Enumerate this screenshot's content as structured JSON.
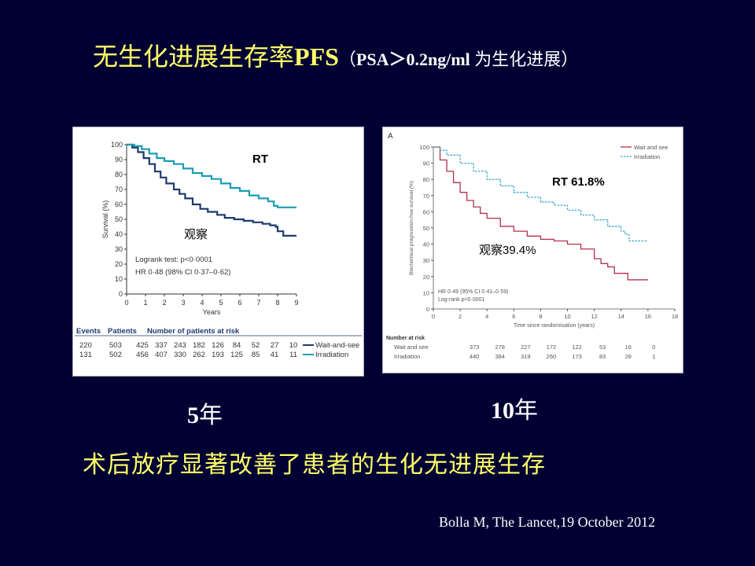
{
  "slide": {
    "title_main": "无生化进展生存率",
    "title_pfs": "PFS",
    "title_paren_open": "（",
    "title_paren_psa": "PSA＞0.2ng/ml ",
    "title_paren_cjk": "为生化进展",
    "title_paren_close": "）",
    "label_5yr_num": "5",
    "label_5yr_unit": "年",
    "label_10yr_num": "10",
    "label_10yr_unit": "年",
    "conclusion": "术后放疗显著改善了患者的生化无进展生存",
    "citation": "Bolla M, The Lancet,19 October 2012"
  },
  "colors": {
    "background": "#000033",
    "title": "#ffff66",
    "left_wait": "#1f3a6e",
    "left_irr": "#1b9db4",
    "right_wait": "#b3304c",
    "right_irr": "#36a9c9"
  },
  "chart_data": [
    {
      "type": "line",
      "ylabel": "Survival (%)",
      "xlabel": "Years",
      "xlim": [
        0,
        9
      ],
      "ylim": [
        0,
        100
      ],
      "xticks": [
        0,
        1,
        2,
        3,
        4,
        5,
        6,
        7,
        8,
        9
      ],
      "yticks": [
        0,
        10,
        20,
        30,
        40,
        50,
        60,
        70,
        80,
        90,
        100
      ],
      "annotations": {
        "rt": "RT",
        "obs": "观察",
        "logrank": "Logrank test: p<0·0001",
        "hr": "HR 0·48 (98% CI 0·37–0·62)"
      },
      "series": [
        {
          "name": "Wait-and-see",
          "x": [
            0,
            0.3,
            0.6,
            0.9,
            1.2,
            1.5,
            1.8,
            2.1,
            2.5,
            2.8,
            3.1,
            3.5,
            3.9,
            4.3,
            4.8,
            5.2,
            5.7,
            6.2,
            6.7,
            7.2,
            7.6,
            7.9,
            8.0,
            8.3,
            8.6,
            9.0
          ],
          "y": [
            100,
            98,
            95,
            91,
            87,
            82,
            78,
            74,
            70,
            67,
            64,
            60,
            57,
            55,
            53,
            51,
            50,
            49,
            48,
            47,
            46,
            45,
            42,
            39,
            39,
            39
          ]
        },
        {
          "name": "Irradiation",
          "x": [
            0,
            0.4,
            0.8,
            1.2,
            1.6,
            2.0,
            2.5,
            3.0,
            3.5,
            4.0,
            4.5,
            5.0,
            5.5,
            6.0,
            6.5,
            7.0,
            7.5,
            7.8,
            8.0,
            8.5,
            9.0
          ],
          "y": [
            100,
            99,
            97,
            94,
            91,
            89,
            87,
            84,
            81,
            79,
            77,
            74,
            71,
            69,
            66,
            64,
            62,
            59,
            58,
            58,
            58
          ]
        }
      ],
      "risk_table": {
        "header": [
          "Events",
          "Patients",
          "Number of patients at risk"
        ],
        "rows": [
          {
            "events": "220",
            "patients": "503",
            "counts": [
              "425",
              "337",
              "243",
              "182",
              "126",
              "84",
              "52",
              "27",
              "10"
            ],
            "label": "Wait-and-see"
          },
          {
            "events": "131",
            "patients": "502",
            "counts": [
              "456",
              "407",
              "330",
              "262",
              "193",
              "125",
              "85",
              "41",
              "11"
            ],
            "label": "Irradiation"
          }
        ]
      }
    },
    {
      "type": "line",
      "panel_letter": "A",
      "ylabel": "Biochemical progression-free survival (%)",
      "xlabel": "Time since randomisation (years)",
      "xlim": [
        0,
        18
      ],
      "ylim": [
        0,
        100
      ],
      "xticks": [
        0,
        2,
        4,
        6,
        8,
        10,
        12,
        14,
        16,
        18
      ],
      "yticks": [
        0,
        10,
        20,
        30,
        40,
        50,
        60,
        70,
        80,
        90,
        100
      ],
      "annotations": {
        "rt": "RT 61.8%",
        "obs": "观察39.4%",
        "hr": "HR 0·49 (95% CI 0·41–0·59)",
        "logrank": "Log-rank p<0·0001"
      },
      "series": [
        {
          "name": "Wait and see",
          "x": [
            0,
            0.5,
            1,
            1.5,
            2,
            2.5,
            3,
            3.5,
            4,
            5,
            6,
            7,
            8,
            9,
            10,
            11,
            12,
            12.5,
            13,
            13.5,
            14,
            14.5,
            15,
            16
          ],
          "y": [
            100,
            92,
            85,
            78,
            72,
            67,
            63,
            59,
            56,
            51,
            48,
            45,
            43,
            42,
            40,
            37,
            31,
            28,
            26,
            22,
            22,
            18,
            18,
            18
          ]
        },
        {
          "name": "Irradiation",
          "x": [
            0,
            0.5,
            1,
            2,
            3,
            4,
            5,
            6,
            7,
            8,
            9,
            10,
            11,
            12,
            13,
            14,
            14.3,
            14.6,
            15,
            16
          ],
          "y": [
            100,
            98,
            95,
            90,
            85,
            80,
            76,
            72,
            69,
            66,
            64,
            61,
            58,
            55,
            51,
            48,
            46,
            42,
            42,
            42
          ]
        }
      ],
      "risk_table": {
        "header": "Number at risk",
        "rows": [
          {
            "label": "Wait and see",
            "counts": [
              "373",
              "278",
              "227",
              "172",
              "122",
              "53",
              "16",
              "0"
            ]
          },
          {
            "label": "Irradiation",
            "counts": [
              "440",
              "384",
              "319",
              "260",
              "173",
              "83",
              "28",
              "1"
            ]
          }
        ]
      }
    }
  ]
}
